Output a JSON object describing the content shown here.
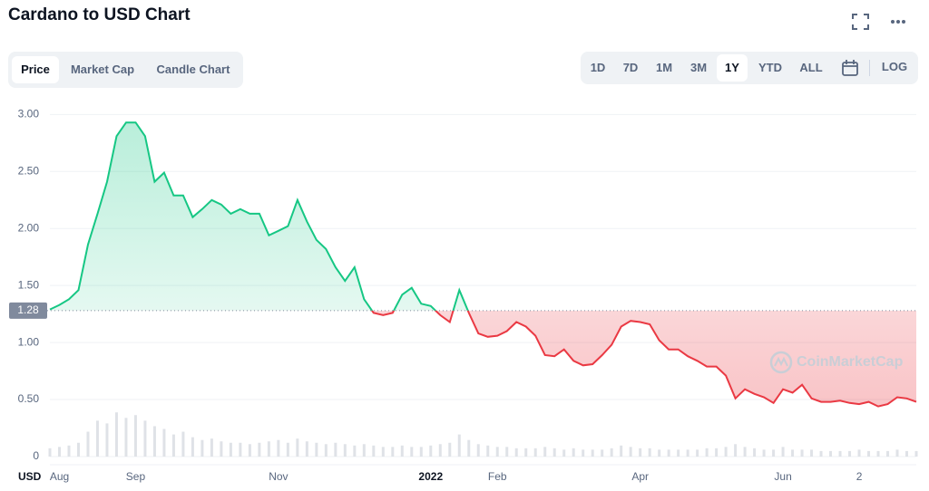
{
  "chart_data": {
    "type": "line",
    "title": "Cardano to USD Chart",
    "currency": "USD",
    "categories": [
      null,
      "Aug",
      null,
      null,
      null,
      null,
      null,
      null,
      null,
      "Sep",
      null,
      null,
      null,
      null,
      null,
      null,
      null,
      null,
      null,
      null,
      null,
      null,
      null,
      null,
      "Nov",
      null,
      null,
      null,
      null,
      null,
      null,
      null,
      null,
      null,
      null,
      null,
      null,
      null,
      null,
      null,
      "2022",
      null,
      null,
      null,
      null,
      null,
      null,
      "Feb",
      null,
      null,
      null,
      null,
      null,
      null,
      null,
      null,
      null,
      null,
      null,
      null,
      null,
      null,
      "Apr",
      null,
      null,
      null,
      null,
      null,
      null,
      null,
      null,
      null,
      null,
      null,
      null,
      null,
      null,
      "Jun",
      null,
      null,
      null,
      null,
      null,
      null,
      null,
      "2",
      null,
      null,
      null,
      null,
      null,
      null
    ],
    "series": [
      {
        "color": "#16c784",
        "down_color": "#ea3943",
        "values": [
          1.29,
          1.33,
          1.38,
          1.46,
          1.86,
          2.13,
          2.41,
          2.81,
          2.93,
          2.93,
          2.81,
          2.41,
          2.49,
          2.29,
          2.29,
          2.1,
          2.17,
          2.25,
          2.21,
          2.13,
          2.17,
          2.13,
          2.13,
          1.94,
          1.98,
          2.02,
          2.25,
          2.06,
          1.9,
          1.82,
          1.66,
          1.54,
          1.66,
          1.38,
          1.26,
          1.24,
          1.26,
          1.42,
          1.48,
          1.34,
          1.32,
          1.24,
          1.18,
          1.46,
          1.26,
          1.08,
          1.05,
          1.06,
          1.1,
          1.18,
          1.14,
          1.06,
          0.89,
          0.88,
          0.94,
          0.84,
          0.8,
          0.81,
          0.89,
          0.98,
          1.14,
          1.19,
          1.18,
          1.16,
          1.02,
          0.94,
          0.94,
          0.88,
          0.84,
          0.79,
          0.79,
          0.71,
          0.51,
          0.59,
          0.55,
          0.52,
          0.47,
          0.59,
          0.56,
          0.63,
          0.51,
          0.48,
          0.48,
          0.49,
          0.47,
          0.46,
          0.48,
          0.44,
          0.46,
          0.52,
          0.51,
          0.48
        ]
      },
      {
        "axis": "y2",
        "color": "#dfe2e7",
        "values": [
          0.6,
          0.7,
          0.8,
          1.0,
          1.8,
          2.6,
          2.4,
          3.2,
          2.8,
          3.0,
          2.6,
          2.2,
          2.0,
          1.6,
          1.8,
          1.4,
          1.2,
          1.3,
          1.1,
          1.0,
          1.0,
          0.9,
          1.0,
          1.1,
          1.2,
          1.0,
          1.3,
          1.1,
          1.0,
          0.9,
          1.0,
          0.9,
          0.8,
          0.9,
          0.8,
          0.7,
          0.7,
          0.8,
          0.7,
          0.7,
          0.8,
          0.9,
          1.0,
          1.6,
          1.2,
          0.9,
          0.8,
          0.7,
          0.7,
          0.6,
          0.6,
          0.6,
          0.7,
          0.6,
          0.5,
          0.6,
          0.5,
          0.5,
          0.5,
          0.6,
          0.8,
          0.7,
          0.6,
          0.6,
          0.5,
          0.5,
          0.5,
          0.5,
          0.5,
          0.6,
          0.6,
          0.7,
          0.9,
          0.7,
          0.6,
          0.5,
          0.5,
          0.7,
          0.5,
          0.5,
          0.5,
          0.4,
          0.4,
          0.4,
          0.4,
          0.5,
          0.4,
          0.4,
          0.4,
          0.5,
          0.4,
          0.4
        ]
      }
    ],
    "reference": 1.28,
    "ylim": [
      0,
      3.13
    ],
    "yticks": [
      0,
      {
        "value": 0.5,
        "label": "0.50"
      },
      {
        "value": 1,
        "label": "1.00"
      },
      {
        "value": 1.5,
        "label": "1.50"
      },
      {
        "value": 2,
        "label": "2.00"
      },
      {
        "value": 2.5,
        "label": "2.50"
      },
      {
        "value": 3,
        "label": "3.00"
      }
    ],
    "y2lim": [
      0,
      8
    ],
    "grid": true
  },
  "toolbar": {
    "tabs": [
      "Price",
      "Market Cap",
      "Candle Chart"
    ],
    "active_tab": 0,
    "ranges": [
      "1D",
      "7D",
      "1M",
      "3M",
      "1Y",
      "YTD",
      "ALL"
    ],
    "active_range": 4,
    "scale_option": "LOG"
  },
  "watermark": "CoinMarketCap"
}
